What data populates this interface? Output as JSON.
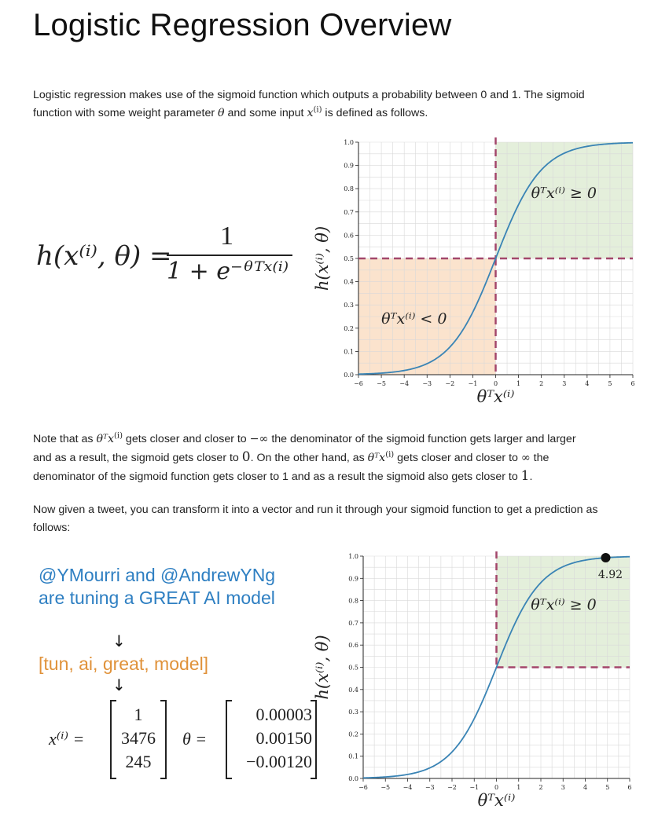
{
  "title": "Logistic Regression Overview",
  "intro": {
    "p1": "Logistic regression makes use of the sigmoid function which outputs a probability between 0 and 1. The sigmoid",
    "p2a": "function with some weight parameter ",
    "p2b": " and some input ",
    "p2c": " is defined as follows."
  },
  "math": {
    "theta": "θ",
    "x": "x",
    "sup_i": "(i)",
    "thetaTx": "θᵀx",
    "neg_inf": "−∞",
    "inf": "∞",
    "zero": "0",
    "one": "1"
  },
  "formula": {
    "lhs": "h(x⁽ⁱ⁾, θ) =",
    "numerator": "1",
    "denominator": "1 + e⁻ᶿᵀˣ⁽ⁱ⁾"
  },
  "note": {
    "l1a": "Note that as ",
    "l1b": " gets closer and closer to ",
    "l1c": " the denominator of the sigmoid function gets larger and larger",
    "l2a": "and as a result, the sigmoid gets closer to ",
    "l2b": ". On the other hand, as ",
    "l2c": " gets closer and closer to ",
    "l2d": " the",
    "l3a": "denominator of the sigmoid function gets closer to 1 and as a result the sigmoid also gets closer to ",
    "l3b": "."
  },
  "now": {
    "l1": "Now given a tweet, you can transform it into a vector and run it through your sigmoid function to get a prediction as",
    "l2": "follows:"
  },
  "tweet": {
    "text": "@YMourri and @AndrewYNg are tuning a GREAT AI model",
    "tokens": "[tun, ai, great, model]",
    "arrow": "↓"
  },
  "vectors": {
    "x_label": "x⁽ⁱ⁾ =",
    "x_values": [
      "1",
      "3476",
      "245"
    ],
    "theta_label": "θ =",
    "theta_values": [
      "0.00003",
      "0.00150",
      "−0.00120"
    ]
  },
  "chart_data": [
    {
      "type": "line",
      "function": "sigmoid",
      "x_range": [
        -6,
        6
      ],
      "ylim": [
        0,
        1
      ],
      "xticks": [
        "−6",
        "−5",
        "−4",
        "−3",
        "−2",
        "−1",
        "0",
        "1",
        "2",
        "3",
        "4",
        "5",
        "6"
      ],
      "yticks": [
        "0.0",
        "0.1",
        "0.2",
        "0.3",
        "0.4",
        "0.5",
        "0.6",
        "0.7",
        "0.8",
        "0.9",
        "1.0"
      ],
      "xlabel": "θᵀx⁽ⁱ⁾",
      "ylabel": "h(x⁽ⁱ⁾, θ)",
      "region_pos_label": "θᵀx⁽ⁱ⁾ ≥ 0",
      "region_neg_label": "θᵀx⁽ⁱ⁾ < 0",
      "threshold_x": 0,
      "threshold_y": 0.5,
      "grid": true,
      "colors": {
        "curve": "#3a84b5",
        "pos_region": "#e4efdb",
        "neg_region": "#fbe3cd",
        "threshold": "#a3476b"
      }
    },
    {
      "type": "line",
      "function": "sigmoid",
      "x_range": [
        -6,
        6
      ],
      "ylim": [
        0,
        1
      ],
      "xticks": [
        "−6",
        "−5",
        "−4",
        "−3",
        "−2",
        "−1",
        "0",
        "1",
        "2",
        "3",
        "4",
        "5",
        "6"
      ],
      "yticks": [
        "0.0",
        "0.1",
        "0.2",
        "0.3",
        "0.4",
        "0.5",
        "0.6",
        "0.7",
        "0.8",
        "0.9",
        "1.0"
      ],
      "xlabel": "θᵀx⁽ⁱ⁾",
      "ylabel": "h(x⁽ⁱ⁾, θ)",
      "region_pos_label": "θᵀx⁽ⁱ⁾ ≥ 0",
      "threshold_x": 0,
      "threshold_y": 0.5,
      "grid": true,
      "point": {
        "x": 4.92,
        "label": "4.92"
      },
      "colors": {
        "curve": "#3a84b5",
        "pos_region": "#e4efdb",
        "threshold": "#a3476b",
        "point": "#111111"
      }
    }
  ]
}
